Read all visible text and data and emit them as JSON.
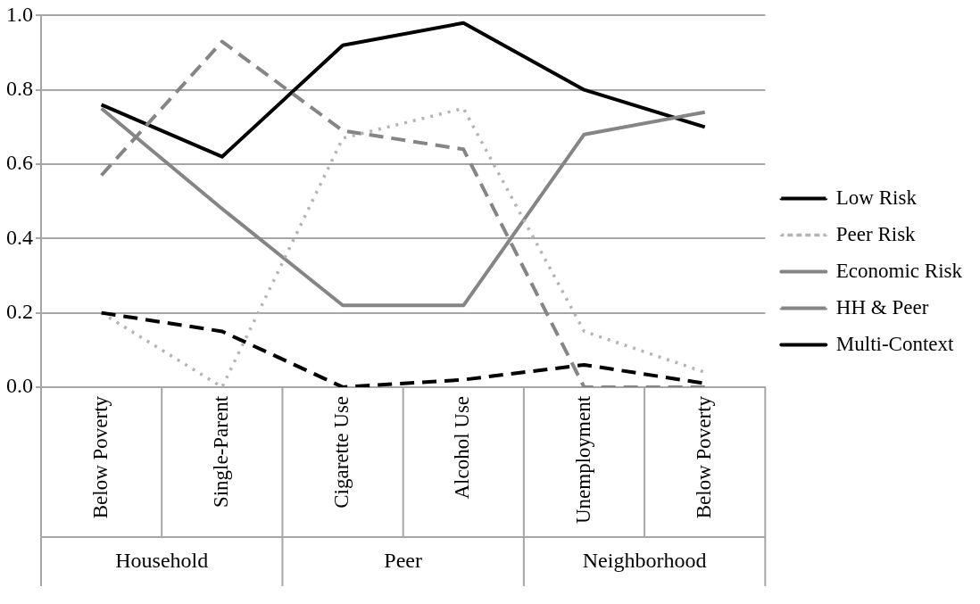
{
  "chart_data": {
    "type": "line",
    "categories": [
      "Below Poverty",
      "Single-Parent",
      "Cigarette Use",
      "Alcohol Use",
      "Unemployment",
      "Below Poverty"
    ],
    "series": [
      {
        "name": "Low Risk",
        "color": "#000000",
        "line_style": "dashed",
        "values": [
          0.2,
          0.15,
          0.0,
          0.02,
          0.06,
          0.01
        ]
      },
      {
        "name": "Peer Risk",
        "color": "#b4b4b4",
        "line_style": "dotted",
        "values": [
          0.2,
          0.0,
          0.67,
          0.75,
          0.15,
          0.04
        ]
      },
      {
        "name": "Economic Risk",
        "color": "#858585",
        "line_style": "solid",
        "values": [
          0.75,
          0.48,
          0.22,
          0.22,
          0.68,
          0.74
        ]
      },
      {
        "name": "HH & Peer",
        "color": "#858585",
        "line_style": "dashed",
        "values": [
          0.57,
          0.93,
          0.69,
          0.64,
          0.0,
          0.0
        ]
      },
      {
        "name": "Multi-Context",
        "color": "#000000",
        "line_style": "solid",
        "values": [
          0.76,
          0.62,
          0.92,
          0.98,
          0.8,
          0.7
        ]
      }
    ],
    "ylim": [
      0,
      1
    ],
    "yticks": [
      {
        "value": 0,
        "label": "0.0"
      },
      {
        "value": 0.2,
        "label": "0.2"
      },
      {
        "value": 0.4,
        "label": "0.4"
      },
      {
        "value": 0.6,
        "label": "0.6"
      },
      {
        "value": 0.8,
        "label": "0.8"
      },
      {
        "value": 1,
        "label": "1.0"
      }
    ],
    "grid": "y",
    "legend": "right",
    "marker": "none",
    "annotations": [
      "Household",
      "Peer",
      "Neighborhood"
    ]
  }
}
